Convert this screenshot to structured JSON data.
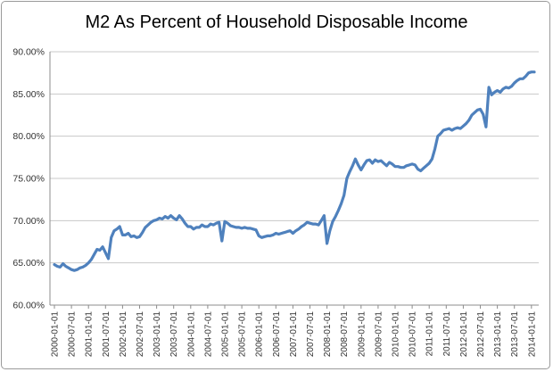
{
  "chart_data": {
    "type": "line",
    "title": "M2 As Percent of Household Disposable Income",
    "xlabel": "",
    "ylabel": "",
    "ylim": [
      60,
      90
    ],
    "y_ticks": [
      "60.00%",
      "65.00%",
      "70.00%",
      "75.00%",
      "80.00%",
      "85.00%",
      "90.00%"
    ],
    "y_tick_values": [
      60,
      65,
      70,
      75,
      80,
      85,
      90
    ],
    "x_ticks": [
      "2000-01-01",
      "2000-07-01",
      "2001-01-01",
      "2001-07-01",
      "2002-01-01",
      "2002-07-01",
      "2003-01-01",
      "2003-07-01",
      "2004-01-01",
      "2004-07-01",
      "2005-01-01",
      "2005-07-01",
      "2006-01-01",
      "2006-07-01",
      "2007-01-01",
      "2007-07-01",
      "2008-01-01",
      "2008-07-01",
      "2009-01-01",
      "2009-07-01",
      "2010-01-01",
      "2010-07-01",
      "2011-01-01",
      "2011-07-01",
      "2012-01-01",
      "2012-07-01",
      "2013-01-01",
      "2013-07-01",
      "2014-01-01"
    ],
    "grid": true,
    "line_color": "#4f81bd",
    "series": [
      {
        "x": [
          "2000-01",
          "2000-02",
          "2000-03",
          "2000-04",
          "2000-05",
          "2000-06",
          "2000-07",
          "2000-08",
          "2000-09",
          "2000-10",
          "2000-11",
          "2000-12",
          "2001-01",
          "2001-02",
          "2001-03",
          "2001-04",
          "2001-05",
          "2001-06",
          "2001-07",
          "2001-08",
          "2001-09",
          "2001-10",
          "2001-11",
          "2001-12",
          "2002-01",
          "2002-02",
          "2002-03",
          "2002-04",
          "2002-05",
          "2002-06",
          "2002-07",
          "2002-08",
          "2002-09",
          "2002-10",
          "2002-11",
          "2002-12",
          "2003-01",
          "2003-02",
          "2003-03",
          "2003-04",
          "2003-05",
          "2003-06",
          "2003-07",
          "2003-08",
          "2003-09",
          "2003-10",
          "2003-11",
          "2003-12",
          "2004-01",
          "2004-02",
          "2004-03",
          "2004-04",
          "2004-05",
          "2004-06",
          "2004-07",
          "2004-08",
          "2004-09",
          "2004-10",
          "2004-11",
          "2004-12",
          "2005-01",
          "2005-02",
          "2005-03",
          "2005-04",
          "2005-05",
          "2005-06",
          "2005-07",
          "2005-08",
          "2005-09",
          "2005-10",
          "2005-11",
          "2005-12",
          "2006-01",
          "2006-02",
          "2006-03",
          "2006-04",
          "2006-05",
          "2006-06",
          "2006-07",
          "2006-08",
          "2006-09",
          "2006-10",
          "2006-11",
          "2006-12",
          "2007-01",
          "2007-02",
          "2007-03",
          "2007-04",
          "2007-05",
          "2007-06",
          "2007-07",
          "2007-08",
          "2007-09",
          "2007-10",
          "2007-11",
          "2007-12",
          "2008-01",
          "2008-02",
          "2008-03",
          "2008-04",
          "2008-05",
          "2008-06",
          "2008-07",
          "2008-08",
          "2008-09",
          "2008-10",
          "2008-11",
          "2008-12",
          "2009-01",
          "2009-02",
          "2009-03",
          "2009-04",
          "2009-05",
          "2009-06",
          "2009-07",
          "2009-08",
          "2009-09",
          "2009-10",
          "2009-11",
          "2009-12",
          "2010-01",
          "2010-02",
          "2010-03",
          "2010-04",
          "2010-05",
          "2010-06",
          "2010-07",
          "2010-08",
          "2010-09",
          "2010-10",
          "2010-11",
          "2010-12",
          "2011-01",
          "2011-02",
          "2011-03",
          "2011-04",
          "2011-05",
          "2011-06",
          "2011-07",
          "2011-08",
          "2011-09",
          "2011-10",
          "2011-11",
          "2011-12",
          "2012-01",
          "2012-02",
          "2012-03",
          "2012-04",
          "2012-05",
          "2012-06",
          "2012-07",
          "2012-08",
          "2012-09",
          "2012-10",
          "2012-11",
          "2012-12",
          "2013-01",
          "2013-02",
          "2013-03",
          "2013-04",
          "2013-05",
          "2013-06",
          "2013-07",
          "2013-08",
          "2013-09",
          "2013-10",
          "2013-11",
          "2013-12",
          "2014-01",
          "2014-02"
        ],
        "values": [
          64.8,
          64.6,
          64.5,
          64.9,
          64.6,
          64.4,
          64.2,
          64.1,
          64.2,
          64.4,
          64.5,
          64.7,
          65.0,
          65.4,
          66.0,
          66.6,
          66.5,
          66.9,
          66.2,
          65.5,
          68.0,
          68.8,
          69.0,
          69.3,
          68.3,
          68.3,
          68.5,
          68.1,
          68.2,
          68.0,
          68.1,
          68.6,
          69.2,
          69.5,
          69.8,
          70.0,
          70.1,
          70.3,
          70.2,
          70.5,
          70.3,
          70.6,
          70.3,
          70.1,
          70.6,
          70.2,
          69.7,
          69.3,
          69.3,
          69.0,
          69.2,
          69.2,
          69.5,
          69.3,
          69.3,
          69.6,
          69.5,
          69.7,
          69.8,
          67.6,
          69.9,
          69.7,
          69.4,
          69.3,
          69.2,
          69.2,
          69.1,
          69.2,
          69.1,
          69.1,
          69.0,
          68.9,
          68.2,
          68.0,
          68.1,
          68.2,
          68.2,
          68.3,
          68.5,
          68.4,
          68.5,
          68.6,
          68.7,
          68.8,
          68.5,
          68.8,
          69.0,
          69.3,
          69.5,
          69.8,
          69.7,
          69.6,
          69.6,
          69.5,
          70.0,
          70.6,
          67.3,
          68.8,
          69.9,
          70.5,
          71.2,
          72.0,
          73.0,
          75.0,
          75.8,
          76.5,
          77.3,
          76.6,
          76.0,
          76.6,
          77.1,
          77.2,
          76.8,
          77.2,
          77.0,
          77.1,
          76.8,
          76.5,
          76.9,
          76.7,
          76.4,
          76.4,
          76.3,
          76.3,
          76.5,
          76.6,
          76.7,
          76.6,
          76.1,
          75.9,
          76.2,
          76.5,
          76.8,
          77.3,
          78.5,
          80.0,
          80.3,
          80.7,
          80.8,
          80.9,
          80.7,
          80.9,
          81.0,
          80.9,
          81.2,
          81.5,
          81.9,
          82.5,
          82.8,
          83.1,
          83.2,
          82.6,
          81.1,
          85.8,
          84.9,
          85.2,
          85.4,
          85.2,
          85.6,
          85.8,
          85.7,
          85.9,
          86.3,
          86.6,
          86.8,
          86.8,
          87.1,
          87.5,
          87.6,
          87.6
        ]
      }
    ]
  }
}
